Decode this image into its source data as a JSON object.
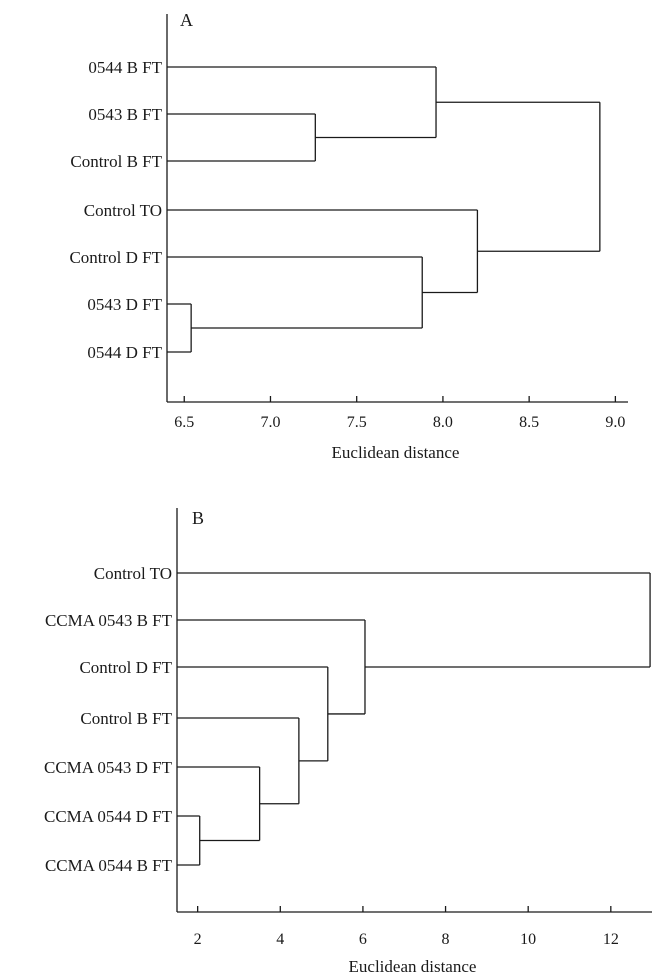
{
  "chart_data": [
    {
      "type": "dendrogram",
      "panel_label": "A",
      "xlabel": "Euclidean distance",
      "xlim": [
        6.4,
        9.05
      ],
      "ticks": [
        6.5,
        7.0,
        7.5,
        8.0,
        8.5,
        9.0
      ],
      "tick_labels": [
        "6.5",
        "7.0",
        "7.5",
        "8.0",
        "8.5",
        "9.0"
      ],
      "leaves": [
        "0544 B FT",
        "0543 B FT",
        "Control B FT",
        "Control TO",
        "Control D FT",
        "0543 D FT",
        "0544 D FT"
      ],
      "merges": [
        {
          "a": "L5",
          "b": "L6",
          "height": 6.54
        },
        {
          "a": "L1",
          "b": "L2",
          "height": 7.26
        },
        {
          "a": "L4",
          "b": "N0",
          "height": 7.88
        },
        {
          "a": "L0",
          "b": "N1",
          "height": 7.96
        },
        {
          "a": "L3",
          "b": "N2",
          "height": 8.2
        },
        {
          "a": "N3",
          "b": "N4",
          "height": 8.91
        }
      ]
    },
    {
      "type": "dendrogram",
      "panel_label": "B",
      "xlabel": "Euclidean distance",
      "xlim": [
        1.5,
        12.9
      ],
      "ticks": [
        2,
        4,
        6,
        8,
        10,
        12
      ],
      "tick_labels": [
        "2",
        "4",
        "6",
        "8",
        "10",
        "12"
      ],
      "leaves": [
        "Control TO",
        "CCMA 0543 B FT",
        "Control D FT",
        "Control B FT",
        "CCMA 0543 D FT",
        "CCMA 0544 D FT",
        "CCMA 0544 B FT"
      ],
      "merges": [
        {
          "a": "L5",
          "b": "L6",
          "height": 2.05
        },
        {
          "a": "L4",
          "b": "N0",
          "height": 3.5
        },
        {
          "a": "L3",
          "b": "N1",
          "height": 4.45
        },
        {
          "a": "L2",
          "b": "N2",
          "height": 5.15
        },
        {
          "a": "L1",
          "b": "N3",
          "height": 6.05
        },
        {
          "a": "L0",
          "b": "N4",
          "height": 12.95
        }
      ]
    }
  ]
}
